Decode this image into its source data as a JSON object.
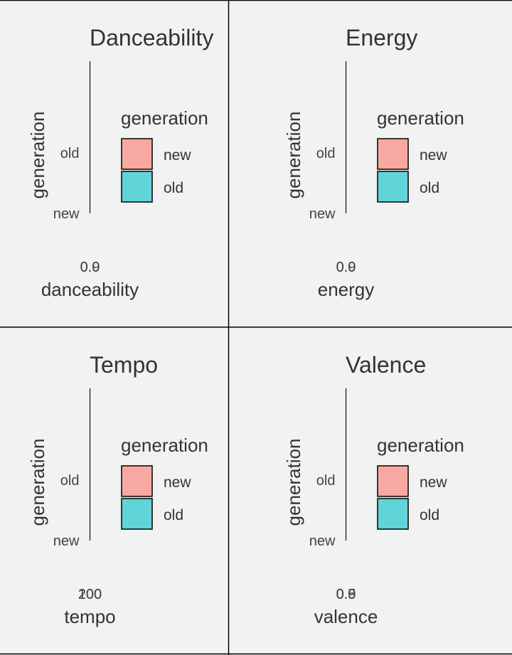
{
  "colors": {
    "new": "#f8a8a2",
    "old": "#60d4d8",
    "background": "#f2f2f2"
  },
  "chart_data": [
    {
      "type": "bar",
      "orientation": "horizontal",
      "title": "Danceability",
      "xlabel": "danceability",
      "ylabel": "generation",
      "categories": [
        "new",
        "old"
      ],
      "x_tick_labels": [
        "0.0",
        "0.9"
      ],
      "series": [
        {
          "values": [
            0,
            0
          ]
        }
      ],
      "legend": {
        "title": "generation",
        "items": [
          {
            "label": "new",
            "color": "#f8a8a2"
          },
          {
            "label": "old",
            "color": "#60d4d8"
          }
        ],
        "position": "right"
      }
    },
    {
      "type": "bar",
      "orientation": "horizontal",
      "title": "Energy",
      "xlabel": "energy",
      "ylabel": "generation",
      "categories": [
        "new",
        "old"
      ],
      "x_tick_labels": [
        "0.0",
        "0.9"
      ],
      "series": [
        {
          "values": [
            0,
            0
          ]
        }
      ],
      "legend": {
        "title": "generation",
        "items": [
          {
            "label": "new",
            "color": "#f8a8a2"
          },
          {
            "label": "old",
            "color": "#60d4d8"
          }
        ],
        "position": "right"
      }
    },
    {
      "type": "bar",
      "orientation": "horizontal",
      "title": "Tempo",
      "xlabel": "tempo",
      "ylabel": "generation",
      "categories": [
        "new",
        "old"
      ],
      "x_tick_labels": [
        "100",
        "200"
      ],
      "series": [
        {
          "values": [
            0,
            0
          ]
        }
      ],
      "legend": {
        "title": "generation",
        "items": [
          {
            "label": "new",
            "color": "#f8a8a2"
          },
          {
            "label": "old",
            "color": "#60d4d8"
          }
        ],
        "position": "right"
      }
    },
    {
      "type": "bar",
      "orientation": "horizontal",
      "title": "Valence",
      "xlabel": "valence",
      "ylabel": "generation",
      "categories": [
        "new",
        "old"
      ],
      "x_tick_labels": [
        "0.0",
        "0.5",
        "0.9"
      ],
      "series": [
        {
          "values": [
            0,
            0
          ]
        }
      ],
      "legend": {
        "title": "generation",
        "items": [
          {
            "label": "new",
            "color": "#f8a8a2"
          },
          {
            "label": "old",
            "color": "#60d4d8"
          }
        ],
        "position": "right"
      }
    }
  ]
}
